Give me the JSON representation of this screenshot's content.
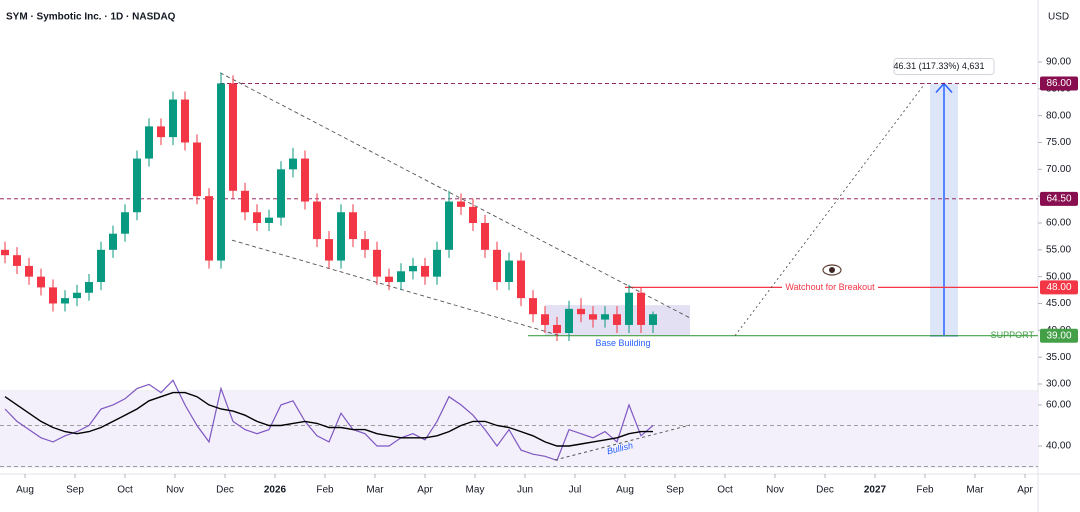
{
  "chart_data": {
    "type": "candlestick",
    "title": "SYM · Symbotic Inc. · 1D · NASDAQ",
    "currency": "USD",
    "up_color": "#089981",
    "down_color": "#f23645",
    "x": [
      -0.4,
      -0.16,
      0.08,
      0.32,
      0.56,
      0.8,
      1.04,
      1.28,
      1.52,
      1.76,
      2.0,
      2.24,
      2.48,
      2.72,
      2.96,
      3.2,
      3.44,
      3.68,
      3.92,
      4.16,
      4.4,
      4.64,
      4.88,
      5.12,
      5.36,
      5.6,
      5.84,
      6.08,
      6.32,
      6.56,
      6.8,
      7.04,
      7.28,
      7.52,
      7.76,
      8.0,
      8.24,
      8.48,
      8.72,
      8.96,
      9.2,
      9.44,
      9.68,
      9.92,
      10.16,
      10.4,
      10.64,
      10.88,
      11.12,
      11.36,
      11.6,
      11.84,
      12.08,
      12.32,
      12.56
    ],
    "open": [
      55,
      54,
      52,
      50,
      48,
      45,
      46,
      47,
      49,
      55,
      58,
      62,
      72,
      78,
      76,
      83,
      75,
      65,
      53,
      86,
      66,
      62,
      60,
      61,
      70,
      72,
      64,
      57,
      53,
      62,
      57,
      55,
      50,
      49,
      51,
      52,
      50,
      55,
      64,
      63,
      60,
      55,
      49,
      53,
      46,
      43,
      41,
      39.5,
      44,
      43,
      42,
      43,
      41,
      47,
      41
    ],
    "high": [
      56.5,
      55.5,
      53.5,
      51.5,
      49.5,
      47.5,
      48.5,
      50.5,
      56.5,
      59.5,
      63.5,
      73.5,
      79.5,
      79.5,
      84.5,
      84.5,
      76.5,
      66.5,
      88,
      87.5,
      67.5,
      63.5,
      62.5,
      71.5,
      74,
      73.5,
      65.5,
      58.5,
      63.5,
      63.5,
      58.5,
      56.5,
      51.5,
      52.5,
      53.5,
      53.5,
      56.5,
      66,
      65.5,
      64.5,
      61.5,
      56.5,
      54.5,
      54.5,
      47.5,
      44.5,
      42.5,
      45.5,
      46,
      44.5,
      44.5,
      44.5,
      48.5,
      48,
      43.5
    ],
    "low": [
      52.5,
      50.5,
      48.5,
      46.5,
      43.5,
      43.5,
      44.5,
      45.5,
      47.5,
      53.5,
      56.5,
      60.5,
      70.5,
      74.5,
      74.5,
      73.5,
      63.5,
      51.5,
      51.5,
      64.5,
      60.5,
      58.5,
      58.5,
      59.5,
      68.5,
      62.5,
      55.5,
      51.5,
      51.5,
      55.5,
      53.5,
      48.5,
      47.5,
      47.5,
      49.5,
      48.5,
      48.5,
      53.5,
      61.5,
      58.5,
      53.5,
      47.5,
      47.5,
      44.5,
      41.5,
      39.5,
      38,
      38,
      41.5,
      40.5,
      40.5,
      39.5,
      39.5,
      39.5,
      39.5
    ],
    "close": [
      54,
      52,
      50,
      48,
      45,
      46,
      47,
      49,
      55,
      58,
      62,
      72,
      78,
      76,
      83,
      75,
      65,
      53,
      86,
      66,
      62,
      60,
      61,
      70,
      72,
      64,
      57,
      53,
      62,
      57,
      55,
      50,
      49,
      51,
      52,
      50,
      55,
      64,
      63,
      60,
      55,
      49,
      53,
      46,
      43,
      41,
      39.5,
      44,
      43,
      42,
      43,
      41,
      47,
      41,
      43
    ],
    "xlim": [
      -0.5,
      20.26
    ],
    "xticks": [
      {
        "value": 0,
        "label": "Aug"
      },
      {
        "value": 1,
        "label": "Sep"
      },
      {
        "value": 2,
        "label": "Oct"
      },
      {
        "value": 3,
        "label": "Nov"
      },
      {
        "value": 4,
        "label": "Dec"
      },
      {
        "value": 5,
        "label": "2026"
      },
      {
        "value": 6,
        "label": "Feb"
      },
      {
        "value": 7,
        "label": "Mar"
      },
      {
        "value": 8,
        "label": "Apr"
      },
      {
        "value": 9,
        "label": "May"
      },
      {
        "value": 10,
        "label": "Jun"
      },
      {
        "value": 11,
        "label": "Jul"
      },
      {
        "value": 12,
        "label": "Aug"
      },
      {
        "value": 13,
        "label": "Sep"
      },
      {
        "value": 14,
        "label": "Oct"
      },
      {
        "value": 15,
        "label": "Nov"
      },
      {
        "value": 16,
        "label": "Dec"
      },
      {
        "value": 17,
        "label": "2027"
      },
      {
        "value": 18,
        "label": "Feb"
      },
      {
        "value": 19,
        "label": "Mar"
      },
      {
        "value": 20,
        "label": "Apr"
      }
    ],
    "ylim": [
      28.88,
      101.55
    ],
    "yticks": [
      {
        "value": 30,
        "label": "30.00"
      },
      {
        "value": 35,
        "label": "35.00"
      },
      {
        "value": 40,
        "label": "40.00"
      },
      {
        "value": 45,
        "label": "45.00"
      },
      {
        "value": 50,
        "label": "50.00"
      },
      {
        "value": 55,
        "label": "55.00"
      },
      {
        "value": 60,
        "label": "60.00"
      },
      {
        "value": 65,
        "label": "65.00"
      },
      {
        "value": 70,
        "label": "70.00"
      },
      {
        "value": 75,
        "label": "75.00"
      },
      {
        "value": 80,
        "label": "80.00"
      },
      {
        "value": 85,
        "label": "85.00"
      },
      {
        "value": 90,
        "label": "90.00"
      }
    ],
    "levels": [
      {
        "value": 86,
        "label": "86.00",
        "color": "#880e4f",
        "style": "dashed",
        "from": 3.9
      },
      {
        "value": 64.5,
        "label": "64.50",
        "color": "#880e4f",
        "style": "dashed",
        "from": -0.5
      },
      {
        "value": 48,
        "label": "48.00",
        "color": "#f23645",
        "style": "solid",
        "from": 12.0
      },
      {
        "value": 39,
        "label": "39.00",
        "color": "#43a047",
        "style": "solid",
        "from": 10.06
      }
    ],
    "trendlines": [
      {
        "points": [
          [
            3.9,
            88
          ],
          [
            13.3,
            42.3
          ]
        ],
        "color": "#555555",
        "style": "dashed"
      },
      {
        "points": [
          [
            4.14,
            56.8
          ],
          [
            10.7,
            39
          ]
        ],
        "color": "#555555",
        "style": "dashed"
      },
      {
        "points": [
          [
            14.2,
            39
          ],
          [
            18.0,
            86
          ]
        ],
        "color": "#555555",
        "style": "dotted"
      }
    ],
    "zones": [
      {
        "x": [
          10.4,
          13.3
        ],
        "y": [
          39,
          44.7
        ],
        "color": "#d8d3f0"
      },
      {
        "x": [
          18.1,
          18.66
        ],
        "y": [
          39,
          86
        ],
        "color": "#cfdcf7"
      }
    ],
    "measure_label": "46.31 (117.33%) 4,631",
    "breakout_label": "Watchout for Breakout",
    "support_label": "SUPPORT",
    "base_label": "Base Building",
    "rsi": {
      "color": "#7e57c2",
      "ma_color": "#000000",
      "values": [
        58,
        52,
        48,
        44,
        42,
        45,
        47,
        50,
        58,
        60,
        63,
        68,
        70,
        66,
        72,
        60,
        50,
        42,
        68,
        52,
        48,
        46,
        48,
        60,
        62,
        52,
        45,
        42,
        56,
        48,
        46,
        40,
        40,
        44,
        46,
        43,
        52,
        64,
        60,
        55,
        48,
        40,
        48,
        38,
        36,
        35,
        33,
        48,
        46,
        44,
        47,
        42,
        60,
        45,
        50
      ],
      "ma": [
        64,
        60,
        56,
        52,
        49,
        47,
        46,
        47,
        49,
        52,
        55,
        58,
        62,
        64,
        66,
        66,
        64,
        60,
        58,
        57,
        55,
        52,
        50,
        50,
        51,
        52,
        51,
        49,
        49,
        48,
        48,
        46,
        45,
        44,
        44,
        44,
        45,
        47,
        50,
        52,
        52,
        50,
        49,
        47,
        45,
        42,
        40,
        40,
        41,
        42,
        43,
        44,
        46,
        47,
        47
      ],
      "ylim": [
        29.3,
        66.3
      ],
      "yticks": [
        {
          "value": 40,
          "label": "40.00"
        },
        {
          "value": 60,
          "label": "60.00"
        }
      ],
      "bands": [
        30,
        50
      ],
      "trendline": {
        "points": [
          [
            10.6,
            33.2
          ],
          [
            13.3,
            50.2
          ]
        ]
      },
      "trend_label": "Bullish"
    }
  }
}
